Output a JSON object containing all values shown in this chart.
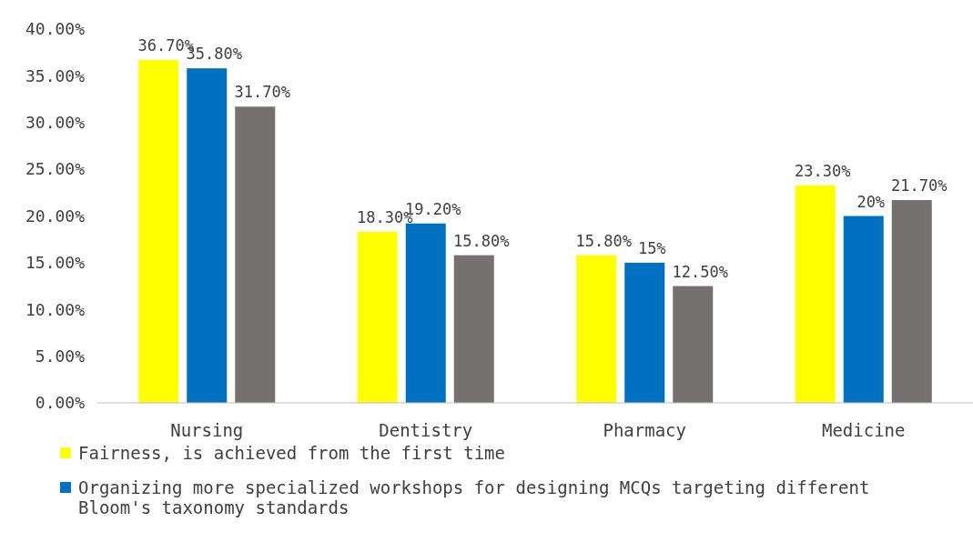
{
  "chart_data": {
    "type": "bar",
    "categories": [
      "Nursing",
      "Dentistry",
      "Pharmacy",
      "Medicine"
    ],
    "series": [
      {
        "name": "Fairness, is achieved  from  the first time",
        "color": "#ffff00",
        "values": [
          36.7,
          18.3,
          15.8,
          23.3
        ],
        "value_labels": [
          "36.70%",
          "18.30%",
          "15.80%",
          "23.30%"
        ]
      },
      {
        "name": "Organizing more specialized workshops for designing  MCQs targeting different Bloom's taxonomy standards",
        "color": "#0070c0",
        "values": [
          35.8,
          19.2,
          15,
          20
        ],
        "value_labels": [
          "35.80%",
          "19.20%",
          "15%",
          "20%"
        ]
      },
      {
        "color": "#767171",
        "values": [
          31.7,
          15.8,
          12.5,
          21.7
        ],
        "value_labels": [
          "31.70%",
          "15.80%",
          "12.50%",
          "21.70%"
        ]
      }
    ],
    "ylim": [
      0,
      40
    ],
    "yticks": [
      {
        "value": 0,
        "label": "0.00%"
      },
      {
        "value": 5,
        "label": "5.00%"
      },
      {
        "value": 10,
        "label": "10.00%"
      },
      {
        "value": 15,
        "label": "15.00%"
      },
      {
        "value": 20,
        "label": "20.00%"
      },
      {
        "value": 25,
        "label": "25.00%"
      },
      {
        "value": 30,
        "label": "30.00%"
      },
      {
        "value": 35,
        "label": "35.00%"
      },
      {
        "value": 40,
        "label": "40.00%"
      }
    ],
    "grid": false,
    "legend": "bottom"
  }
}
